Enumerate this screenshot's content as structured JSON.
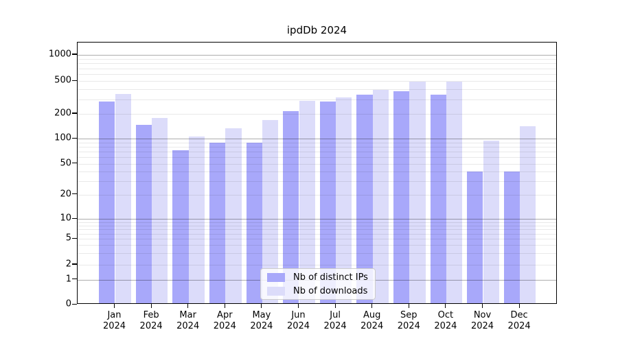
{
  "chart_data": {
    "type": "bar",
    "title": "ipdDb 2024",
    "categories": [
      "Jan 2024",
      "Feb 2024",
      "Mar 2024",
      "Apr 2024",
      "May 2024",
      "Jun 2024",
      "Jul 2024",
      "Aug 2024",
      "Sep 2024",
      "Oct 2024",
      "Nov 2024",
      "Dec 2024"
    ],
    "series": [
      {
        "name": "Nb of distinct IPs",
        "color": "#a8a8fa",
        "values": [
          280,
          148,
          73,
          90,
          90,
          215,
          285,
          340,
          380,
          340,
          40,
          40
        ]
      },
      {
        "name": "Nb of downloads",
        "color": "#dcdcfa",
        "values": [
          350,
          180,
          107,
          135,
          168,
          290,
          320,
          395,
          490,
          490,
          95,
          142
        ]
      }
    ],
    "yscale": "symlog",
    "y_ticks": [
      0,
      1,
      2,
      5,
      10,
      20,
      50,
      100,
      200,
      500,
      1000
    ],
    "ylim": [
      0,
      1400
    ],
    "xlabel": "",
    "ylabel": "",
    "grid": "horizontal major and minor gridlines",
    "legend_position": "lower center inside plot"
  }
}
